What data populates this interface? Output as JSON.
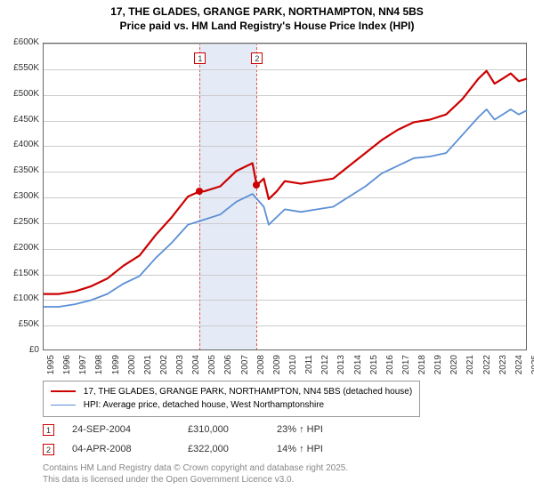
{
  "title_line1": "17, THE GLADES, GRANGE PARK, NORTHAMPTON, NN4 5BS",
  "title_line2": "Price paid vs. HM Land Registry's House Price Index (HPI)",
  "chart": {
    "type": "line",
    "background_color": "#ffffff",
    "grid_color": "#cccccc",
    "axis_color": "#666666",
    "band_color": "#dde6f4",
    "xlim": [
      1995,
      2025
    ],
    "ylim": [
      0,
      600000
    ],
    "ytick_step": 50000,
    "yticks": [
      "£0",
      "£50K",
      "£100K",
      "£150K",
      "£200K",
      "£250K",
      "£300K",
      "£350K",
      "£400K",
      "£450K",
      "£500K",
      "£550K",
      "£600K"
    ],
    "xticks": [
      1995,
      1996,
      1997,
      1998,
      1999,
      2000,
      2001,
      2002,
      2003,
      2004,
      2005,
      2006,
      2007,
      2008,
      2009,
      2010,
      2011,
      2012,
      2013,
      2014,
      2015,
      2016,
      2017,
      2018,
      2019,
      2020,
      2021,
      2022,
      2023,
      2024,
      2025
    ],
    "marker_border_color": "#cc0000",
    "title_fontsize": 12,
    "axis_label_fontsize": 10,
    "series": [
      {
        "name": "17, THE GLADES, GRANGE PARK, NORTHAMPTON, NN4 5BS (detached house)",
        "color": "#cc0000",
        "line_width": 2.2,
        "data": [
          [
            1995,
            110000
          ],
          [
            1996,
            110000
          ],
          [
            1997,
            115000
          ],
          [
            1998,
            125000
          ],
          [
            1999,
            140000
          ],
          [
            2000,
            165000
          ],
          [
            2001,
            185000
          ],
          [
            2002,
            225000
          ],
          [
            2003,
            260000
          ],
          [
            2004,
            300000
          ],
          [
            2004.73,
            310000
          ],
          [
            2005,
            310000
          ],
          [
            2006,
            320000
          ],
          [
            2007,
            350000
          ],
          [
            2008,
            365000
          ],
          [
            2008.26,
            322000
          ],
          [
            2008.7,
            335000
          ],
          [
            2009,
            295000
          ],
          [
            2009.5,
            310000
          ],
          [
            2010,
            330000
          ],
          [
            2011,
            325000
          ],
          [
            2012,
            330000
          ],
          [
            2013,
            335000
          ],
          [
            2014,
            360000
          ],
          [
            2015,
            385000
          ],
          [
            2016,
            410000
          ],
          [
            2017,
            430000
          ],
          [
            2018,
            445000
          ],
          [
            2019,
            450000
          ],
          [
            2020,
            460000
          ],
          [
            2021,
            490000
          ],
          [
            2022,
            530000
          ],
          [
            2022.5,
            545000
          ],
          [
            2023,
            520000
          ],
          [
            2023.5,
            530000
          ],
          [
            2024,
            540000
          ],
          [
            2024.5,
            525000
          ],
          [
            2025,
            530000
          ]
        ]
      },
      {
        "name": "HPI: Average price, detached house, West Northamptonshire",
        "color": "#5b8fd6",
        "line_width": 1.8,
        "data": [
          [
            1995,
            85000
          ],
          [
            1996,
            85000
          ],
          [
            1997,
            90000
          ],
          [
            1998,
            98000
          ],
          [
            1999,
            110000
          ],
          [
            2000,
            130000
          ],
          [
            2001,
            145000
          ],
          [
            2002,
            180000
          ],
          [
            2003,
            210000
          ],
          [
            2004,
            245000
          ],
          [
            2005,
            255000
          ],
          [
            2006,
            265000
          ],
          [
            2007,
            290000
          ],
          [
            2008,
            305000
          ],
          [
            2008.7,
            280000
          ],
          [
            2009,
            245000
          ],
          [
            2009.5,
            260000
          ],
          [
            2010,
            275000
          ],
          [
            2011,
            270000
          ],
          [
            2012,
            275000
          ],
          [
            2013,
            280000
          ],
          [
            2014,
            300000
          ],
          [
            2015,
            320000
          ],
          [
            2016,
            345000
          ],
          [
            2017,
            360000
          ],
          [
            2018,
            375000
          ],
          [
            2019,
            378000
          ],
          [
            2020,
            385000
          ],
          [
            2021,
            420000
          ],
          [
            2022,
            455000
          ],
          [
            2022.5,
            470000
          ],
          [
            2023,
            450000
          ],
          [
            2023.5,
            460000
          ],
          [
            2024,
            470000
          ],
          [
            2024.5,
            460000
          ],
          [
            2025,
            468000
          ]
        ]
      }
    ]
  },
  "sale_markers": [
    {
      "n": "1",
      "x": 2004.73,
      "y": 310000,
      "top": 59
    },
    {
      "n": "2",
      "x": 2008.26,
      "y": 322000,
      "top": 59
    }
  ],
  "legend": {
    "items": [
      {
        "color": "#cc0000",
        "width": 2.2,
        "label": "17, THE GLADES, GRANGE PARK, NORTHAMPTON, NN4 5BS (detached house)"
      },
      {
        "color": "#5b8fd6",
        "width": 1.8,
        "label": "HPI: Average price, detached house, West Northamptonshire"
      }
    ]
  },
  "sales_table": {
    "rows": [
      {
        "n": "1",
        "date": "24-SEP-2004",
        "price": "£310,000",
        "pct": "23% ↑ HPI"
      },
      {
        "n": "2",
        "date": "04-APR-2008",
        "price": "£322,000",
        "pct": "14% ↑ HPI"
      }
    ]
  },
  "footer": {
    "line1": "Contains HM Land Registry data © Crown copyright and database right 2025.",
    "line2": "This data is licensed under the Open Government Licence v3.0."
  }
}
